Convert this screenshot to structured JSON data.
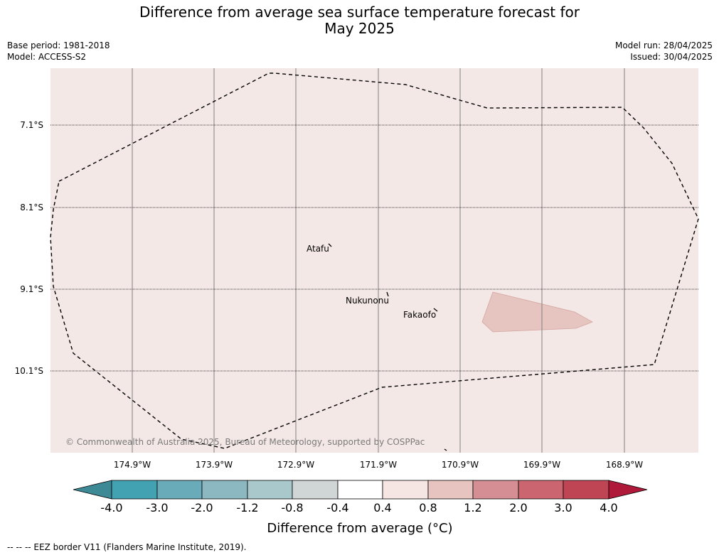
{
  "title_line1": "Difference from average sea surface temperature forecast for",
  "title_line2": "May 2025",
  "base_period": "Base period: 1981-2018",
  "model": "Model: ACCESS-S2",
  "model_run": "Model run: 28/04/2025",
  "issued": "Issued: 30/04/2025",
  "map": {
    "background_color": "#f4e8e6",
    "latitude_labels": [
      "7.1°S",
      "8.1°S",
      "9.1°S",
      "10.1°S"
    ],
    "longitude_labels": [
      "174.9°W",
      "173.9°W",
      "172.9°W",
      "171.9°W",
      "170.9°W",
      "169.9°W",
      "168.9°W"
    ],
    "places": [
      "Atafu",
      "Nukunonu",
      "Fakaofo"
    ],
    "anomaly_patch_color": "#e6c4c0",
    "copyright": "© Commonwealth of Australia 2025, Bureau of Meteorology, supported by COSPPac"
  },
  "colorbar": {
    "colors": [
      "#3d8a96",
      "#43a2b1",
      "#6aabba",
      "#8cb8c2",
      "#a8c8cc",
      "#d0d6d6",
      "#ffffff",
      "#f5e6e4",
      "#e8c4c0",
      "#d58e94",
      "#cb6670",
      "#bf4555",
      "#b01a3a"
    ],
    "ticks": [
      "-4.0",
      "-3.0",
      "-2.0",
      "-1.2",
      "-0.8",
      "-0.4",
      "0.4",
      "0.8",
      "1.2",
      "2.0",
      "3.0",
      "4.0"
    ],
    "label": "Difference from average (°C)"
  },
  "footer": "--  --  -- EEZ border V11 (Flanders Marine Institute, 2019)."
}
